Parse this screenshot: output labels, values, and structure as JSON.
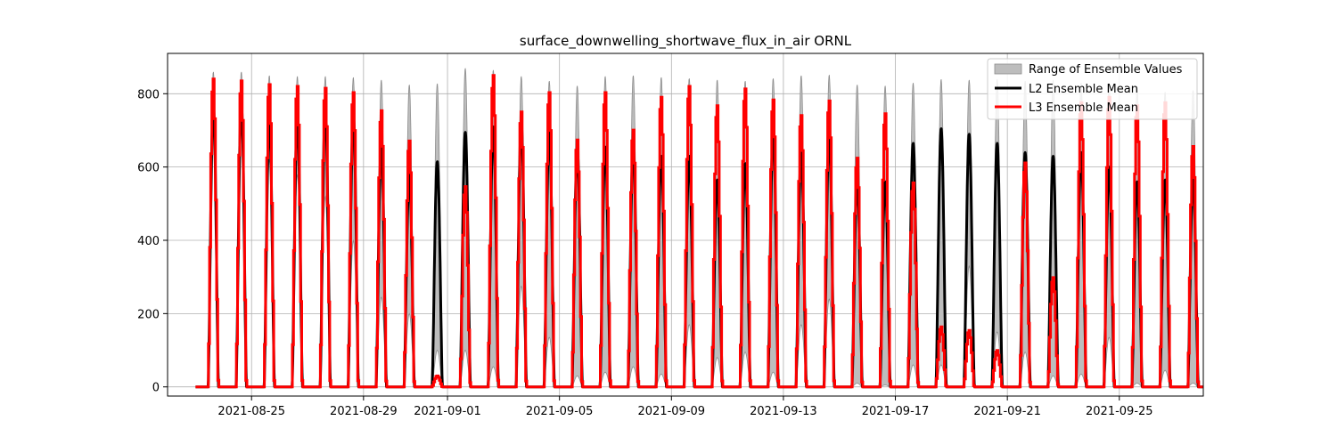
{
  "chart_data": {
    "type": "line",
    "title": "surface_downwelling_shortwave_flux_in_air ORNL",
    "xlabel": "",
    "ylabel": "",
    "x_range": [
      "2021-08-22",
      "2021-09-28"
    ],
    "ylim": [
      -25,
      910
    ],
    "grid": true,
    "legend_position": "top-right",
    "x_ticks": [
      "2021-08-25",
      "2021-08-29",
      "2021-09-01",
      "2021-09-05",
      "2021-09-09",
      "2021-09-13",
      "2021-09-17",
      "2021-09-21",
      "2021-09-25"
    ],
    "y_ticks": [
      0,
      200,
      400,
      600,
      800
    ],
    "legend": [
      {
        "label": "Range of Ensemble Values",
        "style": "band"
      },
      {
        "label": "L2 Ensemble Mean",
        "style": "line"
      },
      {
        "label": "L3 Ensemble Mean",
        "style": "line"
      }
    ],
    "colors": {
      "band_fill": "#bdbdbd",
      "band_edge": "#8c8c8c",
      "l2": "#000000",
      "l3": "#ff0000",
      "grid": "#b0b0b0"
    },
    "days": [
      "2021-08-23",
      "2021-08-24",
      "2021-08-25",
      "2021-08-26",
      "2021-08-27",
      "2021-08-28",
      "2021-08-29",
      "2021-08-30",
      "2021-08-31",
      "2021-09-01",
      "2021-09-02",
      "2021-09-03",
      "2021-09-04",
      "2021-09-05",
      "2021-09-06",
      "2021-09-07",
      "2021-09-08",
      "2021-09-09",
      "2021-09-10",
      "2021-09-11",
      "2021-09-12",
      "2021-09-13",
      "2021-09-14",
      "2021-09-15",
      "2021-09-16",
      "2021-09-17",
      "2021-09-18",
      "2021-09-19",
      "2021-09-20",
      "2021-09-21",
      "2021-09-22",
      "2021-09-23",
      "2021-09-24",
      "2021-09-25",
      "2021-09-26",
      "2021-09-27"
    ],
    "series": [
      {
        "name": "Range of Ensemble Values (max)",
        "daily_peak": [
          860,
          860,
          850,
          848,
          848,
          845,
          838,
          825,
          828,
          870,
          865,
          848,
          835,
          822,
          848,
          850,
          845,
          842,
          838,
          835,
          842,
          850,
          852,
          825,
          822,
          830,
          840,
          838,
          840,
          835,
          838,
          830,
          820,
          818,
          805,
          810
        ]
      },
      {
        "name": "Range of Ensemble Values (min)",
        "daily_peak": [
          810,
          750,
          620,
          580,
          520,
          400,
          245,
          200,
          100,
          100,
          55,
          275,
          135,
          30,
          40,
          55,
          35,
          170,
          80,
          95,
          40,
          170,
          240,
          10,
          5,
          60,
          60,
          330,
          150,
          95,
          30,
          35,
          135,
          10,
          45,
          10
        ]
      },
      {
        "name": "L2 Ensemble Mean",
        "daily_peak": [
          770,
          775,
          735,
          735,
          760,
          745,
          660,
          580,
          615,
          695,
          710,
          720,
          700,
          650,
          655,
          655,
          630,
          630,
          565,
          610,
          700,
          640,
          690,
          560,
          560,
          665,
          705,
          690,
          665,
          640,
          630,
          640,
          600,
          560,
          565,
          565
        ]
      },
      {
        "name": "L3 Ensemble Mean",
        "daily_peak": [
          845,
          840,
          830,
          825,
          820,
          808,
          758,
          675,
          30,
          550,
          855,
          755,
          808,
          678,
          808,
          705,
          795,
          825,
          772,
          818,
          788,
          745,
          785,
          628,
          750,
          560,
          165,
          155,
          100,
          615,
          300,
          780,
          795,
          772,
          780,
          660
        ]
      }
    ]
  }
}
